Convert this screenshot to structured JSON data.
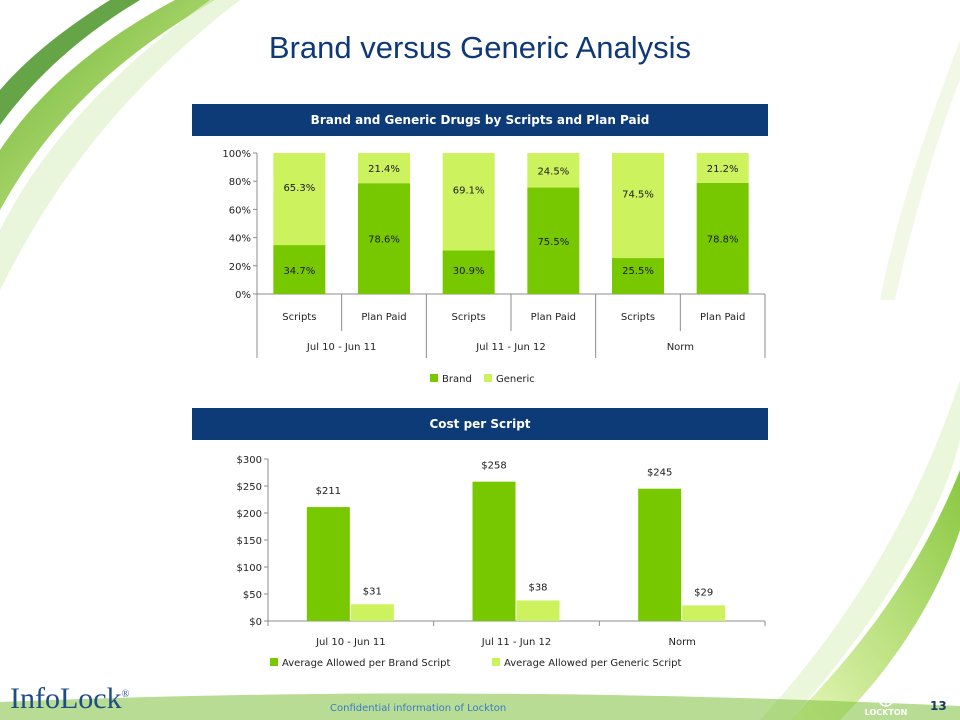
{
  "slide": {
    "title": "Brand versus Generic Analysis",
    "page_number": "13",
    "footer_logo": "InfoLock",
    "footer_logo_mark": "®",
    "footnote": "Confidential information of Lockton",
    "company_logo_text": "LOCKTON"
  },
  "colors": {
    "brand": "#78c800",
    "generic": "#ccf25e",
    "header_bg": "#0c3b78",
    "title": "#0f3876",
    "swoosh": "#8dc63f"
  },
  "chart_data": [
    {
      "type": "bar",
      "stacked": true,
      "title": "Brand and Generic Drugs by Scripts and Plan Paid",
      "categories": [
        "Scripts",
        "Plan Paid",
        "Scripts",
        "Plan Paid",
        "Scripts",
        "Plan Paid"
      ],
      "groups": [
        {
          "label": "Jul 10 - Jun 11",
          "span": 2
        },
        {
          "label": "Jul 11 - Jun 12",
          "span": 2
        },
        {
          "label": "Norm",
          "span": 2
        }
      ],
      "series": [
        {
          "name": "Brand",
          "values": [
            34.7,
            78.6,
            30.9,
            75.5,
            25.5,
            78.8
          ],
          "labels": [
            "34.7%",
            "78.6%",
            "30.9%",
            "75.5%",
            "25.5%",
            "78.8%"
          ]
        },
        {
          "name": "Generic",
          "values": [
            65.3,
            21.4,
            69.1,
            24.5,
            74.5,
            21.2
          ],
          "labels": [
            "65.3%",
            "21.4%",
            "69.1%",
            "24.5%",
            "74.5%",
            "21.2%"
          ]
        }
      ],
      "ylim": [
        0,
        100
      ],
      "yticks": [
        "0%",
        "20%",
        "40%",
        "60%",
        "80%",
        "100%"
      ],
      "legend": "bottom",
      "grid": false
    },
    {
      "type": "bar",
      "title": "Cost per Script",
      "categories": [
        "Jul 10 - Jun 11",
        "Jul 11 - Jun 12",
        "Norm"
      ],
      "series": [
        {
          "name": "Average Allowed per Brand Script",
          "values": [
            211,
            258,
            245
          ],
          "labels": [
            "$211",
            "$258",
            "$245"
          ]
        },
        {
          "name": "Average Allowed per Generic Script",
          "values": [
            31,
            38,
            29
          ],
          "labels": [
            "$31",
            "$38",
            "$29"
          ]
        }
      ],
      "ylim": [
        0,
        300
      ],
      "yticks": [
        "$0",
        "$50",
        "$100",
        "$150",
        "$200",
        "$250",
        "$300"
      ],
      "legend": "bottom",
      "grid": false
    }
  ]
}
